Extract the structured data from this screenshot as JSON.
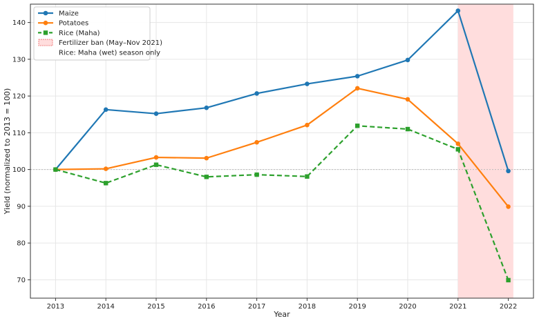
{
  "chart_data": {
    "type": "line",
    "title": "",
    "xlabel": "Year",
    "ylabel": "Yield (normalized to 2013 = 100)",
    "x": [
      2013,
      2014,
      2015,
      2016,
      2017,
      2018,
      2019,
      2020,
      2021,
      2022
    ],
    "ylim": [
      65,
      145
    ],
    "yticks": [
      70,
      80,
      90,
      100,
      110,
      120,
      130,
      140
    ],
    "grid": true,
    "reference_line": 100,
    "legend_position": "top-left",
    "series": [
      {
        "name": "Maize",
        "color": "#1f77b4",
        "style": "solid",
        "marker": "circle",
        "values": [
          100,
          116.3,
          115.2,
          116.8,
          120.7,
          123.3,
          125.4,
          129.8,
          143.2,
          99.6
        ]
      },
      {
        "name": "Potatoes",
        "color": "#ff7f0e",
        "style": "solid",
        "marker": "circle",
        "values": [
          100,
          100.2,
          103.3,
          103.1,
          107.4,
          112.1,
          122.1,
          119.1,
          107.0,
          89.9
        ]
      },
      {
        "name": "Rice (Maha)",
        "color": "#2ca02c",
        "style": "dashed",
        "marker": "square",
        "values": [
          100,
          96.3,
          101.3,
          98.0,
          98.6,
          98.1,
          111.9,
          111.0,
          105.5,
          69.9
        ]
      }
    ],
    "shaded_region": {
      "label": "Fertilizer ban (May–Nov 2021)",
      "x_start": 2021.0,
      "x_end": 2022.1,
      "color": "#ffdddd"
    },
    "legend_note": "Rice: Maha (wet) season only"
  }
}
